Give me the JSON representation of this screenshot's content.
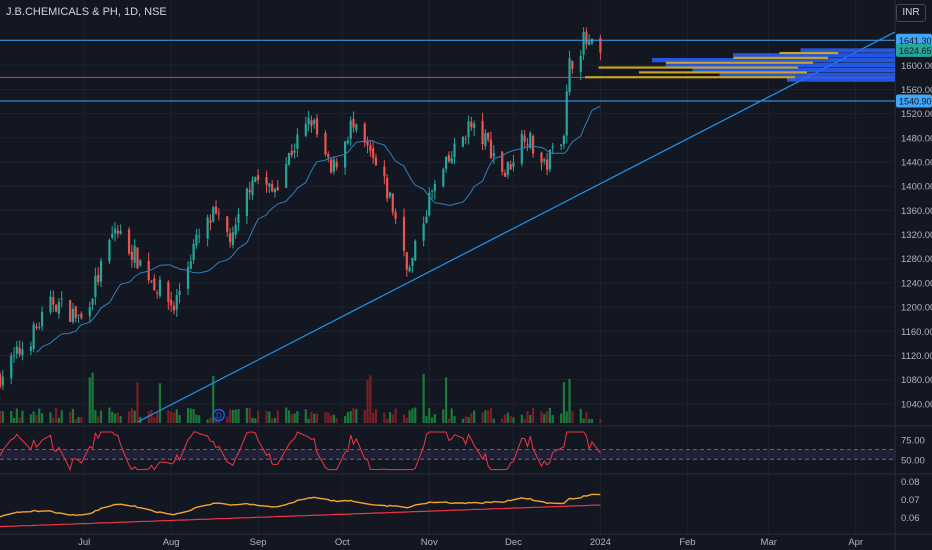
{
  "header": {
    "symbol_title": "J.B.CHEMICALS & PH, 1D, NSE",
    "currency": "INR"
  },
  "colors": {
    "background": "#131722",
    "up": "#26a69a",
    "up_volume": "#1b7a3a",
    "down": "#ef5350",
    "down_volume": "#7a1f25",
    "hline_blue": "#42a5f5",
    "hline_red": "#f23645",
    "trendline": "#2196f3",
    "ma": "#2f80b8",
    "osc_line": "#f23645",
    "ratio_line": "#f0a530",
    "ratio_baseline": "#f23645",
    "profile_gold": "#c9a227",
    "profile_blue": "#2962ff"
  },
  "chart_data": {
    "type": "candlestick",
    "price_axis": {
      "range": [
        1010,
        1655
      ],
      "ticks": [
        "1600.00",
        "1560.00",
        "1520.00",
        "1480.00",
        "1440.00",
        "1400.00",
        "1360.00",
        "1320.00",
        "1280.00",
        "1240.00",
        "1200.00",
        "1160.00",
        "1120.00",
        "1080.00",
        "1040.00"
      ],
      "labels": [
        {
          "value": 1641.3,
          "text": "1641.30",
          "color": "#42a5f5"
        },
        {
          "value": 1624.65,
          "text": "1624.65",
          "color": "#26a69a"
        },
        {
          "value": 1540.9,
          "text": "1540.90",
          "color": "#42a5f5"
        }
      ]
    },
    "horizontal_lines": [
      {
        "value": 1641.3,
        "color": "#42a5f5"
      },
      {
        "value": 1580,
        "color": "#f23645"
      },
      {
        "value": 1540.9,
        "color": "#42a5f5"
      }
    ],
    "time_axis": {
      "labels": [
        {
          "text": "Jul",
          "date": "2023-07-01"
        },
        {
          "text": "Aug",
          "date": "2023-08-01"
        },
        {
          "text": "Sep",
          "date": "2023-09-01"
        },
        {
          "text": "Oct",
          "date": "2023-10-01"
        },
        {
          "text": "Nov",
          "date": "2023-11-01"
        },
        {
          "text": "Dec",
          "date": "2023-12-01"
        },
        {
          "text": "2024",
          "date": "2024-01-01"
        },
        {
          "text": "Feb",
          "date": "2024-02-01"
        },
        {
          "text": "Mar",
          "date": "2024-03-01"
        },
        {
          "text": "Apr",
          "date": "2024-04-01"
        }
      ],
      "start": "2023-06-01",
      "end": "2024-04-15",
      "last_bar": "2024-01-01"
    },
    "trendline": {
      "from": {
        "date": "2023-07-20",
        "price": 1010
      },
      "to": {
        "date": "2024-04-15",
        "price": 1655
      }
    },
    "price_path": [
      [
        "2023-06-01",
        1085
      ],
      [
        "2023-06-12",
        1150
      ],
      [
        "2023-06-20",
        1210
      ],
      [
        "2023-06-30",
        1180
      ],
      [
        "2023-07-06",
        1250
      ],
      [
        "2023-07-12",
        1330
      ],
      [
        "2023-07-20",
        1280
      ],
      [
        "2023-07-26",
        1240
      ],
      [
        "2023-08-02",
        1200
      ],
      [
        "2023-08-09",
        1300
      ],
      [
        "2023-08-16",
        1350
      ],
      [
        "2023-08-23",
        1310
      ],
      [
        "2023-08-30",
        1420
      ],
      [
        "2023-09-06",
        1390
      ],
      [
        "2023-09-13",
        1460
      ],
      [
        "2023-09-20",
        1510
      ],
      [
        "2023-09-27",
        1420
      ],
      [
        "2023-10-04",
        1500
      ],
      [
        "2023-10-11",
        1450
      ],
      [
        "2023-10-18",
        1380
      ],
      [
        "2023-10-25",
        1260
      ],
      [
        "2023-11-01",
        1380
      ],
      [
        "2023-11-08",
        1440
      ],
      [
        "2023-11-15",
        1500
      ],
      [
        "2023-11-22",
        1470
      ],
      [
        "2023-11-28",
        1420
      ],
      [
        "2023-12-05",
        1490
      ],
      [
        "2023-12-12",
        1430
      ],
      [
        "2023-12-19",
        1495
      ],
      [
        "2023-12-21",
        1600
      ],
      [
        "2023-12-26",
        1640
      ],
      [
        "2024-01-01",
        1615
      ]
    ],
    "annotation_marker": {
      "date": "2023-08-18",
      "text": "D"
    },
    "volume_profile": {
      "gold_rows": [
        {
          "price": 1620,
          "fraction": 0.28
        },
        {
          "price": 1612,
          "fraction": 0.45
        },
        {
          "price": 1604,
          "fraction": 0.7
        },
        {
          "price": 1596,
          "fraction": 0.95
        },
        {
          "price": 1588,
          "fraction": 0.8
        },
        {
          "price": 1580,
          "fraction": 1.0
        }
      ],
      "blue_rows": [
        {
          "price": 1624,
          "fraction": 0.35
        },
        {
          "price": 1616,
          "fraction": 0.6
        },
        {
          "price": 1608,
          "fraction": 0.9
        },
        {
          "price": 1600,
          "fraction": 0.85
        },
        {
          "price": 1592,
          "fraction": 0.75
        },
        {
          "price": 1584,
          "fraction": 0.65
        },
        {
          "price": 1576,
          "fraction": 0.4
        }
      ]
    },
    "oscillator": {
      "range": [
        35,
        90
      ],
      "ticks": [
        "75.00",
        "50.00"
      ],
      "band": [
        51,
        63
      ],
      "band_lines": [
        51,
        63
      ]
    },
    "ratio_pane": {
      "range": [
        0.052,
        0.083
      ],
      "ticks": [
        "0.08",
        "0.07",
        "0.06"
      ]
    }
  }
}
